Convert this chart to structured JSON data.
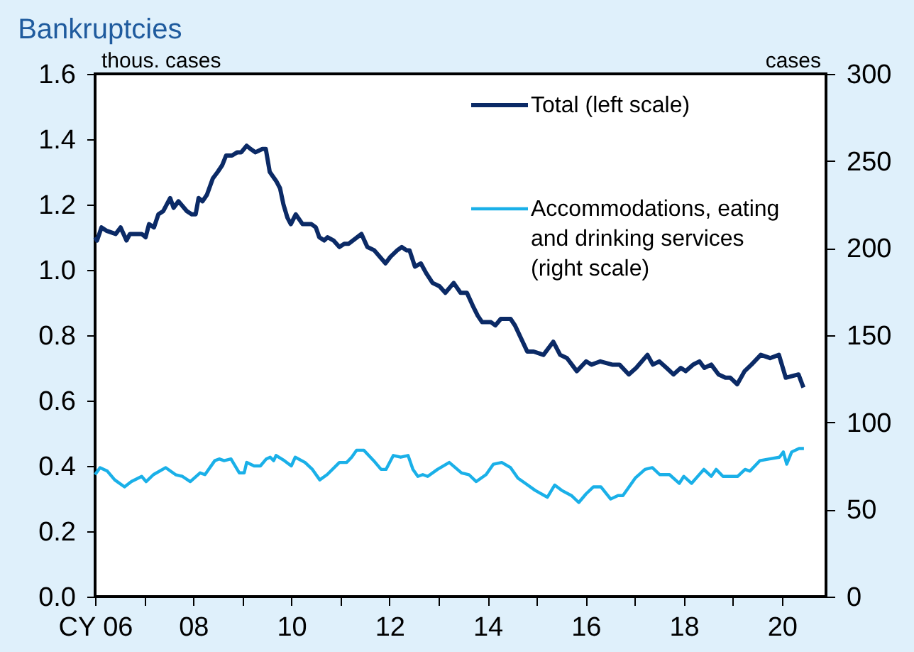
{
  "chart_data": {
    "type": "line",
    "title": "Bankruptcies",
    "ylabel": "thous. cases",
    "y2label": "cases",
    "xlim": [
      2006,
      2020.9
    ],
    "xticks": [
      {
        "value": 2006,
        "label": "CY 06"
      },
      {
        "value": 2007,
        "label": null
      },
      {
        "value": 2008,
        "label": "08"
      },
      {
        "value": 2009,
        "label": null
      },
      {
        "value": 2010,
        "label": "10"
      },
      {
        "value": 2011,
        "label": null
      },
      {
        "value": 2012,
        "label": "12"
      },
      {
        "value": 2013,
        "label": null
      },
      {
        "value": 2014,
        "label": "14"
      },
      {
        "value": 2015,
        "label": null
      },
      {
        "value": 2016,
        "label": "16"
      },
      {
        "value": 2017,
        "label": null
      },
      {
        "value": 2018,
        "label": "18"
      },
      {
        "value": 2019,
        "label": null
      },
      {
        "value": 2020,
        "label": "20"
      }
    ],
    "ylim": [
      0,
      1.6
    ],
    "yticks": [
      {
        "value": 0,
        "label": "0.0"
      },
      0.2,
      0.4,
      0.6,
      0.8,
      {
        "value": 1,
        "label": "1.0"
      },
      1.2,
      1.4,
      1.6
    ],
    "y2lim": [
      0,
      300
    ],
    "y2ticks": [
      0,
      50,
      100,
      150,
      200,
      250,
      300
    ],
    "grid": false,
    "legend": "top right",
    "line_style": "solid",
    "marker": "none",
    "series": [
      {
        "name": "Total (left scale)",
        "color": "#0b2a66",
        "x": [
          2006.0,
          2006.04,
          2006.13,
          2006.23,
          2006.42,
          2006.52,
          2006.64,
          2006.71,
          2006.95,
          2007.03,
          2007.1,
          2007.2,
          2007.29,
          2007.39,
          2007.53,
          2007.6,
          2007.7,
          2007.87,
          2007.97,
          2008.05,
          2008.11,
          2008.19,
          2008.28,
          2008.4,
          2008.5,
          2008.59,
          2008.67,
          2008.79,
          2008.9,
          2008.98,
          2009.09,
          2009.17,
          2009.27,
          2009.41,
          2009.48,
          2009.56,
          2009.7,
          2009.77,
          2009.84,
          2009.92,
          2009.99,
          2010.09,
          2010.23,
          2010.41,
          2010.5,
          2010.57,
          2010.67,
          2010.74,
          2010.86,
          2010.98,
          2011.08,
          2011.17,
          2011.43,
          2011.55,
          2011.69,
          2011.92,
          2012.02,
          2012.16,
          2012.25,
          2012.35,
          2012.41,
          2012.52,
          2012.64,
          2012.75,
          2012.88,
          2013.02,
          2013.14,
          2013.31,
          2013.45,
          2013.58,
          2013.7,
          2013.8,
          2013.89,
          2014.07,
          2014.16,
          2014.27,
          2014.47,
          2014.56,
          2014.81,
          2014.94,
          2015.14,
          2015.34,
          2015.48,
          2015.62,
          2015.82,
          2016.01,
          2016.12,
          2016.3,
          2016.54,
          2016.69,
          2016.88,
          2017.03,
          2017.26,
          2017.37,
          2017.5,
          2017.65,
          2017.79,
          2017.94,
          2018.04,
          2018.19,
          2018.32,
          2018.42,
          2018.56,
          2018.71,
          2018.85,
          2018.95,
          2019.09,
          2019.24,
          2019.38,
          2019.57,
          2019.76,
          2019.94,
          2020.08,
          2020.34,
          2020.44
        ],
        "values": [
          1.1,
          1.09,
          1.13,
          1.12,
          1.11,
          1.13,
          1.09,
          1.11,
          1.11,
          1.1,
          1.14,
          1.13,
          1.17,
          1.18,
          1.22,
          1.19,
          1.21,
          1.18,
          1.17,
          1.17,
          1.22,
          1.21,
          1.23,
          1.28,
          1.3,
          1.32,
          1.35,
          1.35,
          1.36,
          1.36,
          1.38,
          1.37,
          1.36,
          1.37,
          1.37,
          1.3,
          1.27,
          1.25,
          1.2,
          1.16,
          1.14,
          1.17,
          1.14,
          1.14,
          1.13,
          1.1,
          1.09,
          1.1,
          1.09,
          1.07,
          1.08,
          1.08,
          1.11,
          1.07,
          1.06,
          1.02,
          1.04,
          1.06,
          1.07,
          1.06,
          1.06,
          1.01,
          1.02,
          0.99,
          0.96,
          0.95,
          0.93,
          0.96,
          0.93,
          0.93,
          0.89,
          0.86,
          0.84,
          0.84,
          0.83,
          0.85,
          0.85,
          0.83,
          0.75,
          0.75,
          0.74,
          0.78,
          0.74,
          0.73,
          0.69,
          0.72,
          0.71,
          0.72,
          0.71,
          0.71,
          0.68,
          0.7,
          0.74,
          0.71,
          0.72,
          0.7,
          0.68,
          0.7,
          0.69,
          0.71,
          0.72,
          0.7,
          0.71,
          0.68,
          0.67,
          0.67,
          0.65,
          0.69,
          0.71,
          0.74,
          0.73,
          0.74,
          0.67,
          0.68,
          0.64
        ]
      },
      {
        "name": "Accommodations, eating and drinking services (right scale)",
        "color": "#1ab0e8",
        "axis": "y2",
        "x": [
          2006.0,
          2006.1,
          2006.25,
          2006.4,
          2006.6,
          2006.74,
          2006.95,
          2007.04,
          2007.19,
          2007.44,
          2007.64,
          2007.78,
          2007.94,
          2008.14,
          2008.24,
          2008.44,
          2008.53,
          2008.63,
          2008.77,
          2008.94,
          2009.04,
          2009.09,
          2009.24,
          2009.37,
          2009.49,
          2009.57,
          2009.64,
          2009.69,
          2009.86,
          2010.0,
          2010.08,
          2010.28,
          2010.43,
          2010.58,
          2010.73,
          2010.98,
          2011.13,
          2011.23,
          2011.33,
          2011.48,
          2011.68,
          2011.83,
          2011.93,
          2012.08,
          2012.23,
          2012.38,
          2012.48,
          2012.58,
          2012.68,
          2012.78,
          2012.98,
          2013.22,
          2013.47,
          2013.62,
          2013.77,
          2013.97,
          2014.12,
          2014.29,
          2014.47,
          2014.62,
          2014.77,
          2014.97,
          2015.22,
          2015.37,
          2015.51,
          2015.71,
          2015.86,
          2016.01,
          2016.16,
          2016.31,
          2016.51,
          2016.66,
          2016.76,
          2017.01,
          2017.21,
          2017.36,
          2017.51,
          2017.71,
          2017.91,
          2018.0,
          2018.16,
          2018.41,
          2018.56,
          2018.66,
          2018.8,
          2019.1,
          2019.25,
          2019.35,
          2019.55,
          2019.75,
          2019.95,
          2020.03,
          2020.1,
          2020.2,
          2020.35,
          2020.45
        ],
        "values": [
          70,
          74,
          72,
          67,
          63,
          66,
          69,
          66,
          70,
          74,
          70,
          69,
          66,
          71,
          70,
          78,
          79,
          78,
          79,
          71,
          71,
          77,
          75,
          75,
          79,
          80,
          78,
          81,
          78,
          75,
          80,
          77,
          73,
          67,
          70,
          77,
          77,
          80,
          84,
          84,
          78,
          73,
          73,
          81,
          80,
          81,
          73,
          69,
          70,
          69,
          73,
          77,
          71,
          70,
          66,
          70,
          76,
          77,
          74,
          68,
          65,
          61,
          57,
          64,
          61,
          58,
          54,
          59,
          63,
          63,
          56,
          58,
          58,
          68,
          73,
          74,
          70,
          70,
          65,
          69,
          65,
          73,
          69,
          73,
          69,
          69,
          73,
          72,
          78,
          79,
          80,
          83,
          76,
          83,
          85,
          85
        ]
      }
    ]
  }
}
